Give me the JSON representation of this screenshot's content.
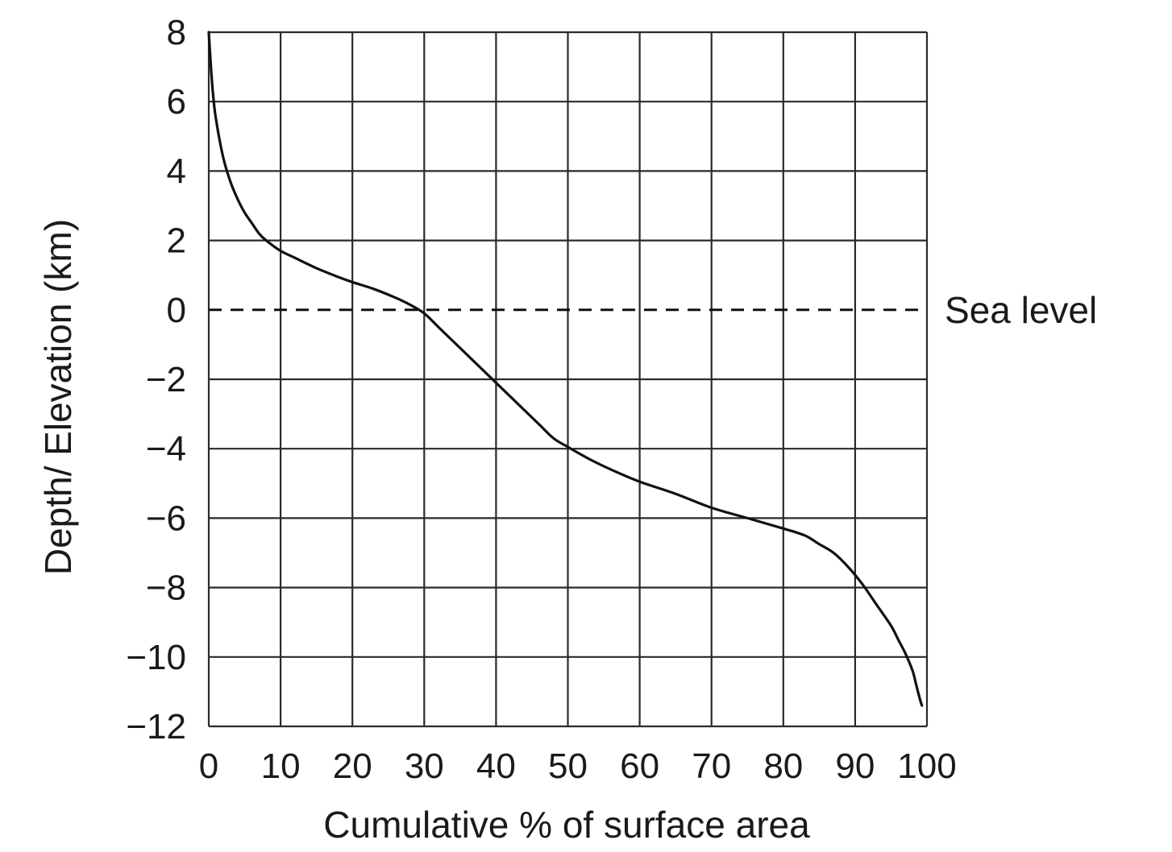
{
  "chart_data": {
    "type": "line",
    "title": "",
    "xlabel": "Cumulative % of surface area",
    "ylabel": "Depth/ Elevation (km)",
    "xlim": [
      0,
      100
    ],
    "ylim": [
      -12,
      8
    ],
    "xticks": [
      0,
      10,
      20,
      30,
      40,
      50,
      60,
      70,
      80,
      90,
      100
    ],
    "xtick_labels": [
      "0",
      "10",
      "20",
      "30",
      "40",
      "50",
      "60",
      "70",
      "80",
      "90",
      "100"
    ],
    "yticks": [
      8,
      6,
      4,
      2,
      0,
      -2,
      -4,
      -6,
      -8,
      -10,
      -12
    ],
    "ytick_labels": [
      "8",
      "6",
      "4",
      "2",
      "0",
      "−2",
      "−4",
      "−6",
      "−8",
      "−10",
      "−12"
    ],
    "grid": true,
    "series": [
      {
        "x": [
          0,
          0.3,
          0.6,
          1,
          2,
          3,
          4,
          5,
          6,
          7,
          8,
          10,
          12,
          15,
          18,
          20,
          23,
          26,
          28,
          30,
          32,
          35,
          38,
          40,
          43,
          46,
          48,
          50,
          53,
          56,
          60,
          65,
          70,
          75,
          80,
          83,
          85,
          87,
          89,
          91,
          93,
          95,
          96,
          97,
          98,
          98.5,
          99,
          99.3
        ],
        "y": [
          8,
          7.0,
          6.2,
          5.5,
          4.4,
          3.7,
          3.2,
          2.8,
          2.5,
          2.2,
          2.0,
          1.7,
          1.5,
          1.2,
          0.95,
          0.8,
          0.6,
          0.35,
          0.15,
          -0.1,
          -0.5,
          -1.1,
          -1.7,
          -2.1,
          -2.7,
          -3.3,
          -3.7,
          -3.95,
          -4.3,
          -4.6,
          -4.95,
          -5.3,
          -5.7,
          -6.0,
          -6.3,
          -6.5,
          -6.75,
          -7.0,
          -7.4,
          -7.9,
          -8.5,
          -9.1,
          -9.5,
          -9.9,
          -10.4,
          -10.8,
          -11.2,
          -11.4
        ]
      }
    ],
    "reference_lines": [
      {
        "axis": "y",
        "value": 0,
        "label": "Sea level",
        "style": "dashed"
      }
    ]
  }
}
